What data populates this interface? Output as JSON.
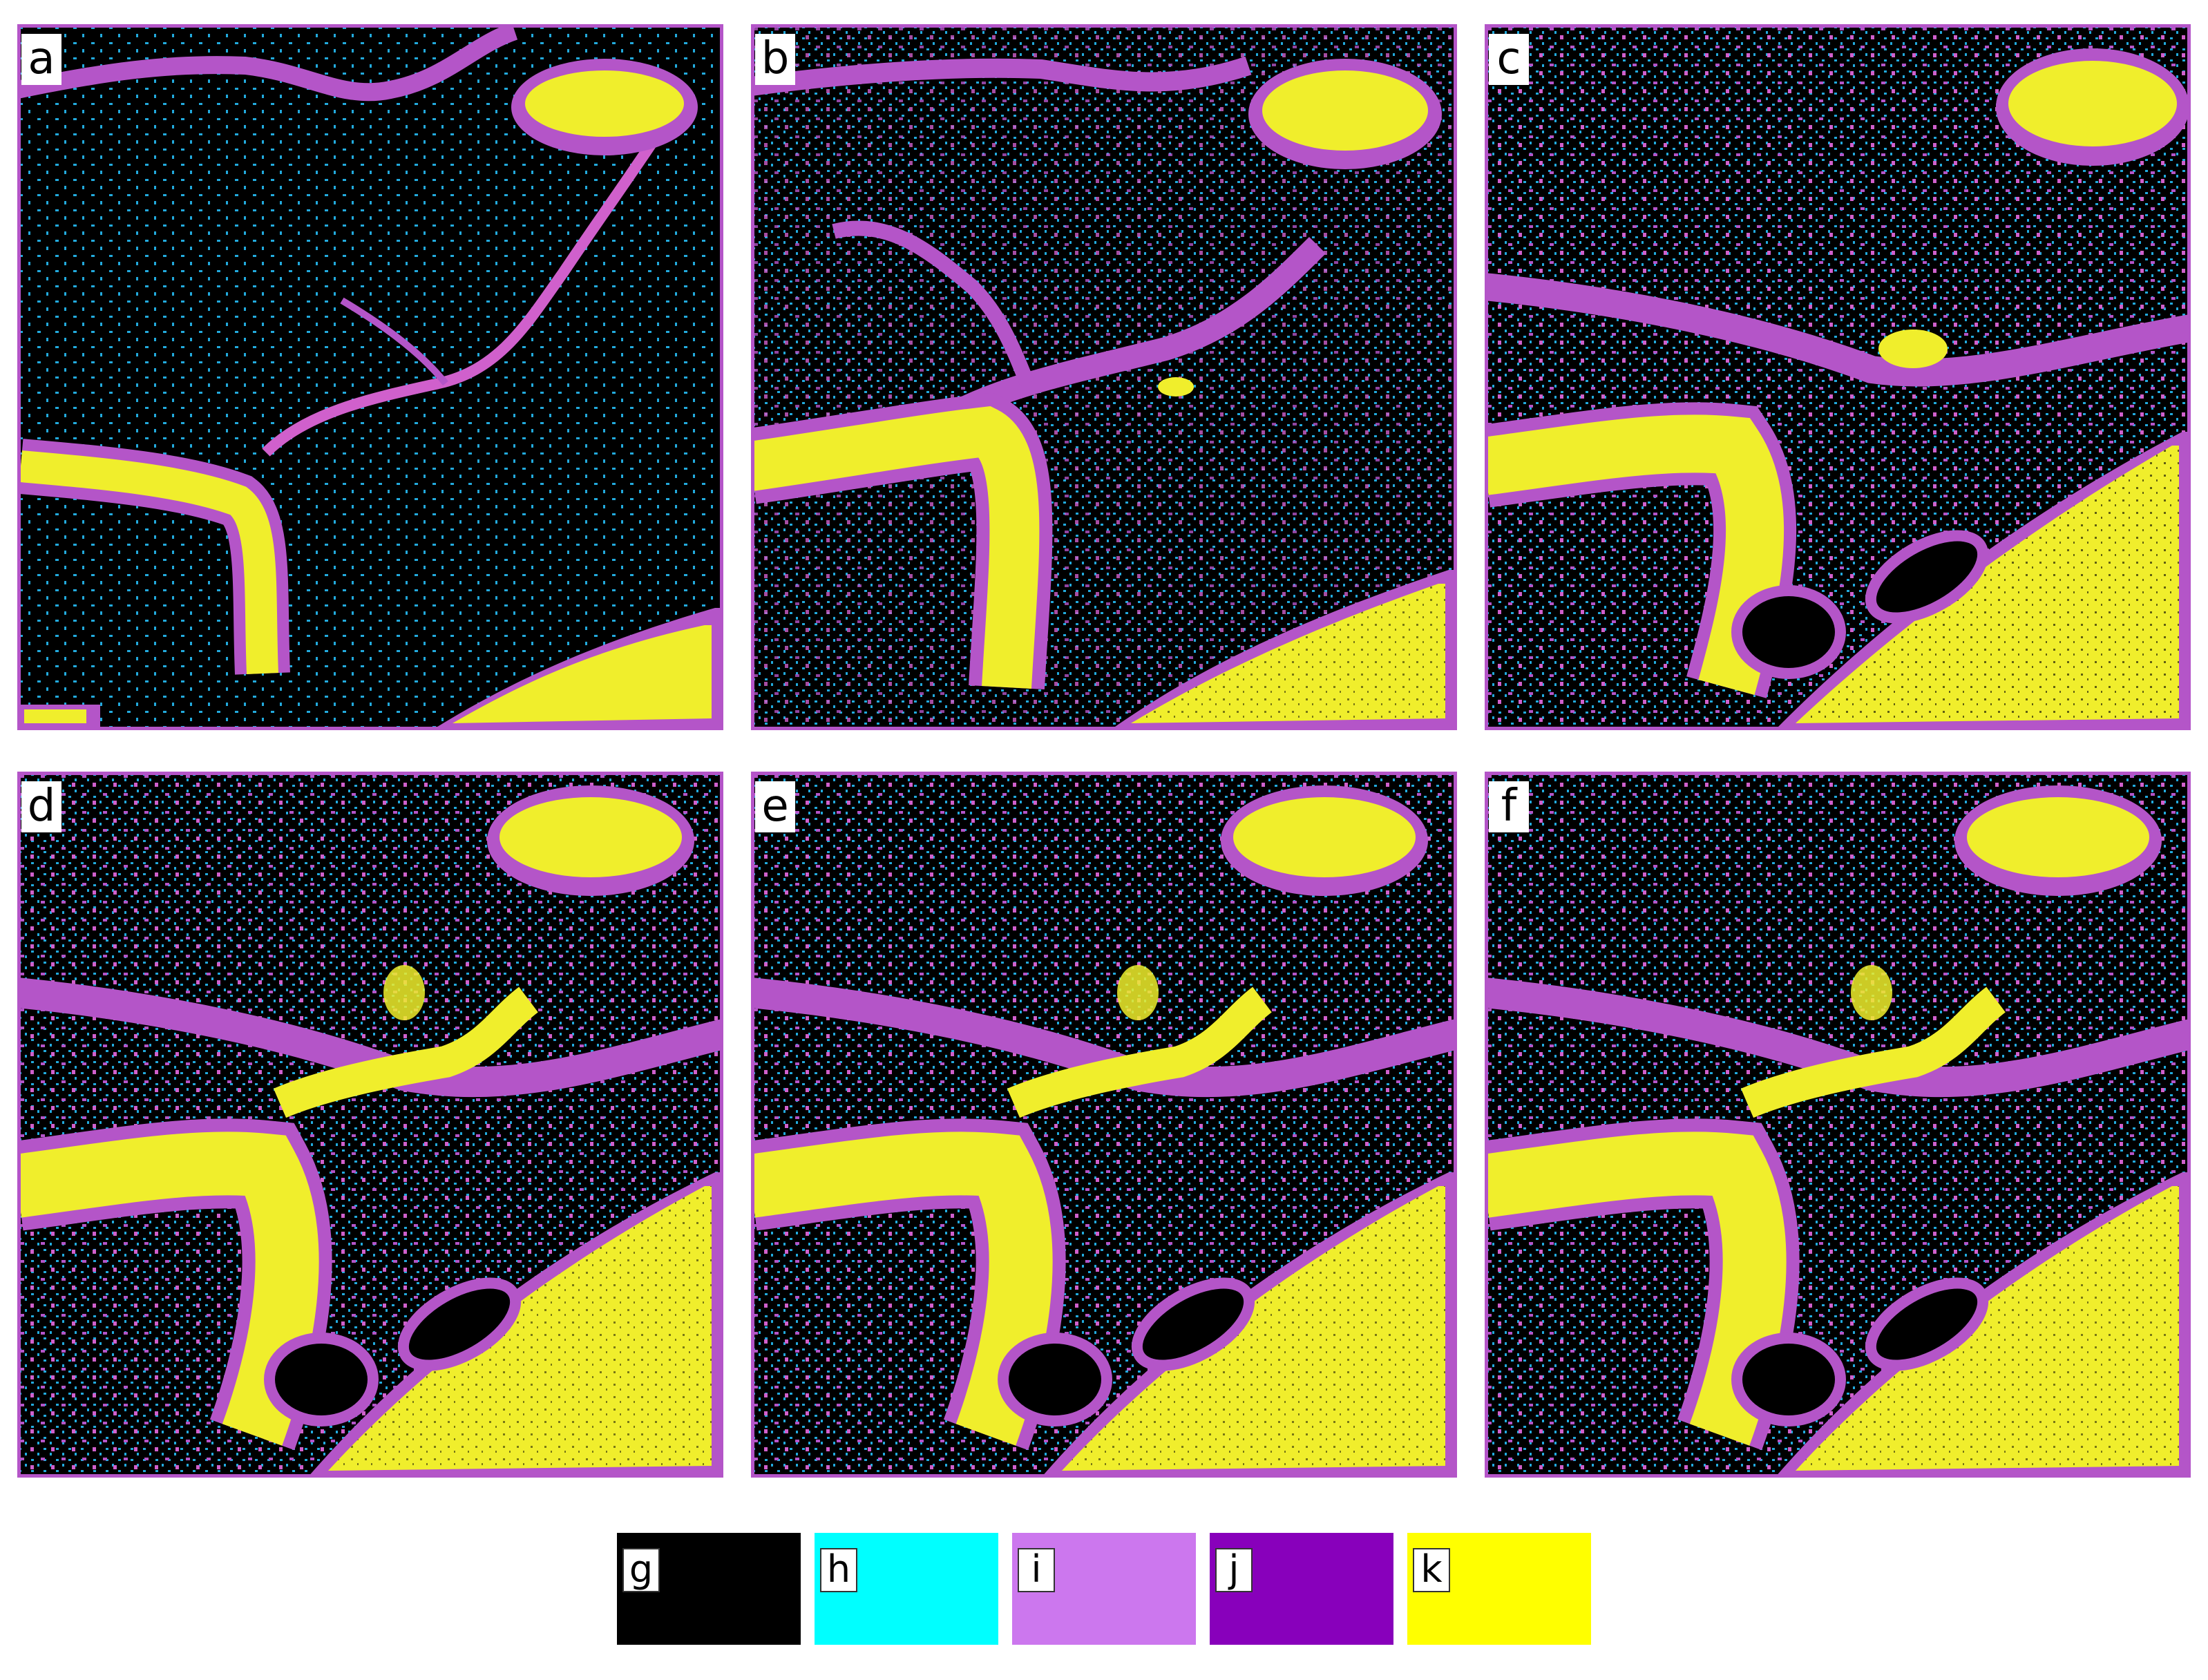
{
  "panels": [
    {
      "id": "a",
      "label": "a"
    },
    {
      "id": "b",
      "label": "b"
    },
    {
      "id": "c",
      "label": "c"
    },
    {
      "id": "d",
      "label": "d"
    },
    {
      "id": "e",
      "label": "e"
    },
    {
      "id": "f",
      "label": "f"
    }
  ],
  "legend": [
    {
      "label": "g",
      "color": "#000000"
    },
    {
      "label": "h",
      "color": "#00ffff"
    },
    {
      "label": "i",
      "color": "#cc77ee"
    },
    {
      "label": "j",
      "color": "#8800bb"
    },
    {
      "label": "k",
      "color": "#ffff00"
    }
  ],
  "map_colors": {
    "background": "#000000",
    "dots": "#22aadd",
    "channel": "#b455c8",
    "bright_channel": "#d060cc",
    "water": "#f0ee2c"
  }
}
